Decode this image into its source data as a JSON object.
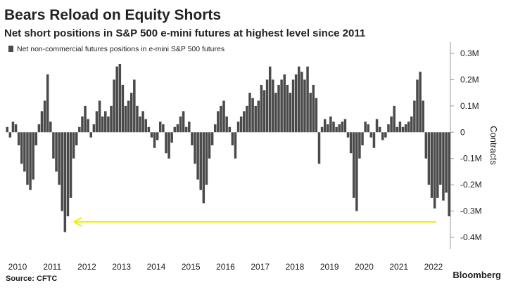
{
  "chart_data": {
    "type": "bar",
    "title": "Bears Reload on Equity Shorts",
    "subtitle": "Net short positions in S&P 500 e-mini futures at highest level since 2011",
    "y_label": "Contracts",
    "source": "Source: CFTC",
    "brand": "Bloomberg",
    "categories": [
      "2010",
      null,
      null,
      null,
      null,
      null,
      null,
      null,
      null,
      null,
      null,
      null,
      "2011",
      null,
      null,
      null,
      null,
      null,
      null,
      null,
      null,
      null,
      null,
      null,
      "2012",
      null,
      null,
      null,
      null,
      null,
      null,
      null,
      null,
      null,
      null,
      null,
      "2013",
      null,
      null,
      null,
      null,
      null,
      null,
      null,
      null,
      null,
      null,
      null,
      "2014",
      null,
      null,
      null,
      null,
      null,
      null,
      null,
      null,
      null,
      null,
      null,
      "2015",
      null,
      null,
      null,
      null,
      null,
      null,
      null,
      null,
      null,
      null,
      null,
      "2016",
      null,
      null,
      null,
      null,
      null,
      null,
      null,
      null,
      null,
      null,
      null,
      "2017",
      null,
      null,
      null,
      null,
      null,
      null,
      null,
      null,
      null,
      null,
      null,
      "2018",
      null,
      null,
      null,
      null,
      null,
      null,
      null,
      null,
      null,
      null,
      null,
      "2019",
      null,
      null,
      null,
      null,
      null,
      null,
      null,
      null,
      null,
      null,
      null,
      "2020",
      null,
      null,
      null,
      null,
      null,
      null,
      null,
      null,
      null,
      null,
      null,
      "2021",
      null,
      null,
      null,
      null,
      null,
      null,
      null,
      null,
      null,
      null,
      null,
      "2022",
      null,
      null,
      null,
      null,
      null,
      null,
      null,
      null,
      null
    ],
    "series": [
      {
        "name": "Net non-commercial futures positions in e-mini S&P 500 futures",
        "color": "#4a4a4a",
        "values": [
          20000,
          -20000,
          40000,
          30000,
          -50000,
          -120000,
          -150000,
          -200000,
          -220000,
          -180000,
          -50000,
          30000,
          80000,
          120000,
          220000,
          40000,
          -100000,
          -150000,
          -200000,
          -300000,
          -380000,
          -320000,
          -250000,
          -100000,
          -50000,
          20000,
          60000,
          100000,
          50000,
          -20000,
          30000,
          80000,
          120000,
          60000,
          80000,
          60000,
          100000,
          200000,
          250000,
          260000,
          180000,
          100000,
          120000,
          150000,
          200000,
          100000,
          60000,
          80000,
          50000,
          20000,
          -20000,
          -60000,
          -30000,
          40000,
          30000,
          -80000,
          -100000,
          -40000,
          20000,
          30000,
          60000,
          80000,
          20000,
          40000,
          -50000,
          -120000,
          -180000,
          -220000,
          -270000,
          -200000,
          -100000,
          -50000,
          30000,
          80000,
          100000,
          120000,
          60000,
          20000,
          -50000,
          -100000,
          40000,
          60000,
          80000,
          100000,
          150000,
          130000,
          100000,
          120000,
          180000,
          160000,
          200000,
          250000,
          200000,
          150000,
          180000,
          200000,
          220000,
          180000,
          150000,
          200000,
          220000,
          250000,
          230000,
          200000,
          250000,
          150000,
          180000,
          130000,
          -120000,
          20000,
          50000,
          30000,
          60000,
          40000,
          20000,
          30000,
          40000,
          50000,
          -20000,
          -80000,
          -250000,
          -300000,
          -100000,
          -50000,
          40000,
          30000,
          -20000,
          -60000,
          50000,
          20000,
          -30000,
          -20000,
          30000,
          60000,
          100000,
          20000,
          40000,
          20000,
          30000,
          40000,
          60000,
          120000,
          200000,
          230000,
          120000,
          -100000,
          -200000,
          -250000,
          -290000,
          -250000,
          -200000,
          -260000,
          -230000,
          -320000
        ]
      }
    ],
    "ylim": [
      -400000,
      300000
    ],
    "yticks": [
      {
        "value": 300000,
        "label": "0.3M"
      },
      {
        "value": 200000,
        "label": "0.2M"
      },
      {
        "value": 100000,
        "label": "0.1M"
      },
      0,
      {
        "value": -100000,
        "label": "-0.1M"
      },
      {
        "value": -200000,
        "label": "-0.2M"
      },
      {
        "value": -300000,
        "label": "-0.3M"
      },
      {
        "value": -400000,
        "label": "-0.4M"
      }
    ],
    "grid": false
  }
}
